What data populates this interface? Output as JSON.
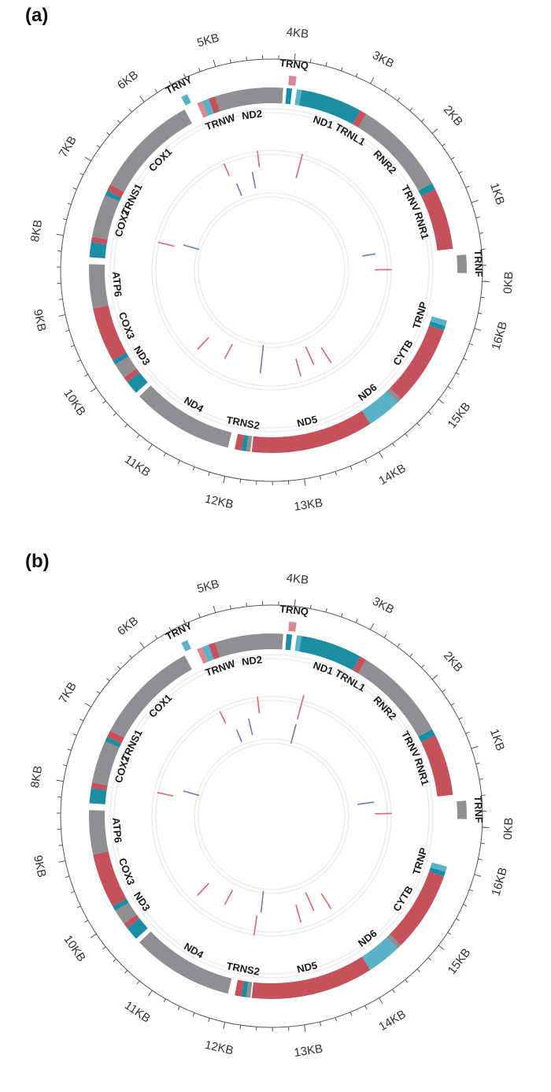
{
  "genome_length_kb": 16.6,
  "colors": {
    "gray": "#8d8f92",
    "red": "#c5515d",
    "teal": "#1b8ea3",
    "lightteal": "#5bb2c6",
    "pink": "#d88a92",
    "link_red": "#d46a72",
    "link_blue": "#6a7fae",
    "ring": "#ebebeb",
    "axis": "#555555"
  },
  "kb_labels": [
    "0KB",
    "1KB",
    "2KB",
    "3KB",
    "4KB",
    "5KB",
    "6KB",
    "7KB",
    "8KB",
    "9KB",
    "10KB",
    "11KB",
    "12KB",
    "13KB",
    "14KB",
    "15KB",
    "16KB"
  ],
  "panels": [
    {
      "label": "(a)",
      "genes": [
        {
          "name": "TRNF",
          "start": 0.1,
          "end": 0.35,
          "color": "gray",
          "outside": true
        },
        {
          "name": "RNR1",
          "start": 0.45,
          "end": 1.35,
          "color": "red"
        },
        {
          "name": "TRNV",
          "start": 1.35,
          "end": 1.45,
          "color": "teal"
        },
        {
          "name": "RNR2",
          "start": 1.45,
          "end": 2.85,
          "color": "gray"
        },
        {
          "name": "TRNL1",
          "start": 2.85,
          "end": 2.95,
          "color": "red"
        },
        {
          "name": "ND1",
          "start": 2.95,
          "end": 3.85,
          "color": "teal"
        },
        {
          "name": "TRNQ",
          "start": 3.95,
          "end": 4.05,
          "color": "pink",
          "outside": true
        },
        {
          "name": "",
          "start": 3.85,
          "end": 3.92,
          "color": "lightteal"
        },
        {
          "name": "",
          "start": 3.99,
          "end": 4.07,
          "color": "teal"
        },
        {
          "name": "ND2",
          "start": 4.12,
          "end": 5.12,
          "color": "gray"
        },
        {
          "name": "TRNW",
          "start": 5.12,
          "end": 5.22,
          "color": "red"
        },
        {
          "name": "",
          "start": 5.22,
          "end": 5.32,
          "color": "lightteal"
        },
        {
          "name": "",
          "start": 5.32,
          "end": 5.4,
          "color": "pink"
        },
        {
          "name": "TRNY",
          "start": 5.47,
          "end": 5.56,
          "color": "lightteal",
          "outside": true
        },
        {
          "name": "COX1",
          "start": 5.6,
          "end": 7.15,
          "color": "gray"
        },
        {
          "name": "TRNS1",
          "start": 7.15,
          "end": 7.25,
          "color": "red"
        },
        {
          "name": "",
          "start": 7.25,
          "end": 7.32,
          "color": "teal"
        },
        {
          "name": "COX2",
          "start": 7.32,
          "end": 7.95,
          "color": "gray"
        },
        {
          "name": "",
          "start": 7.95,
          "end": 8.03,
          "color": "red"
        },
        {
          "name": "",
          "start": 8.03,
          "end": 8.25,
          "color": "teal"
        },
        {
          "name": "ATP6",
          "start": 8.35,
          "end": 9.0,
          "color": "gray"
        },
        {
          "name": "COX3",
          "start": 9.0,
          "end": 9.8,
          "color": "red"
        },
        {
          "name": "ND3",
          "start": 9.85,
          "end": 10.1,
          "color": "gray"
        },
        {
          "name": "",
          "start": 10.1,
          "end": 10.18,
          "color": "red"
        },
        {
          "name": "",
          "start": 10.18,
          "end": 10.38,
          "color": "teal"
        },
        {
          "name": "",
          "start": 9.8,
          "end": 9.87,
          "color": "teal"
        },
        {
          "name": "ND4",
          "start": 10.45,
          "end": 11.95,
          "color": "gray"
        },
        {
          "name": "TRNS2",
          "start": 12.05,
          "end": 12.15,
          "color": "red"
        },
        {
          "name": "",
          "start": 12.15,
          "end": 12.22,
          "color": "teal"
        },
        {
          "name": "",
          "start": 12.22,
          "end": 12.28,
          "color": "gray"
        },
        {
          "name": "ND5",
          "start": 12.3,
          "end": 14.1,
          "color": "red"
        },
        {
          "name": "ND6",
          "start": 14.1,
          "end": 14.6,
          "color": "lightteal"
        },
        {
          "name": "",
          "start": 14.6,
          "end": 14.67,
          "color": "gray"
        },
        {
          "name": "CYTB",
          "start": 14.67,
          "end": 15.85,
          "color": "red"
        },
        {
          "name": "",
          "start": 15.85,
          "end": 15.92,
          "color": "teal"
        },
        {
          "name": "TRNP",
          "start": 15.92,
          "end": 16.0,
          "color": "lightteal"
        }
      ],
      "links": [
        {
          "pos": 0.15,
          "r1": 0.62,
          "r2": 0.72,
          "color": "link_red"
        },
        {
          "pos": 0.55,
          "r1": 0.55,
          "r2": 0.63,
          "color": "link_blue"
        },
        {
          "pos": 3.6,
          "r1": 0.57,
          "r2": 0.72,
          "color": "link_red"
        },
        {
          "pos": 4.6,
          "r1": 0.62,
          "r2": 0.72,
          "color": "link_red"
        },
        {
          "pos": 4.8,
          "r1": 0.5,
          "r2": 0.6,
          "color": "link_blue"
        },
        {
          "pos": 5.4,
          "r1": 0.62,
          "r2": 0.7,
          "color": "link_red"
        },
        {
          "pos": 5.3,
          "r1": 0.48,
          "r2": 0.56,
          "color": "link_blue"
        },
        {
          "pos": 7.8,
          "r1": 0.6,
          "r2": 0.7,
          "color": "link_red"
        },
        {
          "pos": 7.7,
          "r1": 0.45,
          "r2": 0.55,
          "color": "link_blue"
        },
        {
          "pos": 10.6,
          "r1": 0.55,
          "r2": 0.65,
          "color": "link_red"
        },
        {
          "pos": 11.3,
          "r1": 0.5,
          "r2": 0.6,
          "color": "link_red"
        },
        {
          "pos": 12.3,
          "r1": 0.45,
          "r2": 0.62,
          "color": "link_blue"
        },
        {
          "pos": 13.7,
          "r1": 0.5,
          "r2": 0.62,
          "color": "link_red"
        },
        {
          "pos": 14.1,
          "r1": 0.55,
          "r2": 0.66,
          "color": "link_red"
        },
        {
          "pos": 13.3,
          "r1": 0.55,
          "r2": 0.66,
          "color": "link_red"
        }
      ]
    },
    {
      "label": "(b)",
      "genes": [
        {
          "name": "TRNF",
          "start": 0.1,
          "end": 0.35,
          "color": "gray",
          "outside": true
        },
        {
          "name": "RNR1",
          "start": 0.45,
          "end": 1.35,
          "color": "red"
        },
        {
          "name": "TRNV",
          "start": 1.35,
          "end": 1.45,
          "color": "teal"
        },
        {
          "name": "RNR2",
          "start": 1.45,
          "end": 2.85,
          "color": "gray"
        },
        {
          "name": "TRNL1",
          "start": 2.85,
          "end": 2.95,
          "color": "red"
        },
        {
          "name": "ND1",
          "start": 2.95,
          "end": 3.85,
          "color": "teal"
        },
        {
          "name": "TRNQ",
          "start": 3.95,
          "end": 4.05,
          "color": "pink",
          "outside": true
        },
        {
          "name": "",
          "start": 3.85,
          "end": 3.92,
          "color": "lightteal"
        },
        {
          "name": "",
          "start": 3.99,
          "end": 4.07,
          "color": "teal"
        },
        {
          "name": "ND2",
          "start": 4.12,
          "end": 5.12,
          "color": "gray"
        },
        {
          "name": "TRNW",
          "start": 5.12,
          "end": 5.22,
          "color": "red"
        },
        {
          "name": "",
          "start": 5.22,
          "end": 5.32,
          "color": "lightteal"
        },
        {
          "name": "",
          "start": 5.32,
          "end": 5.4,
          "color": "pink"
        },
        {
          "name": "TRNY",
          "start": 5.47,
          "end": 5.56,
          "color": "lightteal",
          "outside": true
        },
        {
          "name": "COX1",
          "start": 5.6,
          "end": 7.15,
          "color": "gray"
        },
        {
          "name": "TRNS1",
          "start": 7.15,
          "end": 7.25,
          "color": "red"
        },
        {
          "name": "",
          "start": 7.25,
          "end": 7.32,
          "color": "teal"
        },
        {
          "name": "COX2",
          "start": 7.32,
          "end": 7.95,
          "color": "gray"
        },
        {
          "name": "",
          "start": 7.95,
          "end": 8.03,
          "color": "red"
        },
        {
          "name": "",
          "start": 8.03,
          "end": 8.25,
          "color": "teal"
        },
        {
          "name": "ATP6",
          "start": 8.35,
          "end": 9.0,
          "color": "gray"
        },
        {
          "name": "COX3",
          "start": 9.0,
          "end": 9.8,
          "color": "red"
        },
        {
          "name": "ND3",
          "start": 9.85,
          "end": 10.1,
          "color": "gray"
        },
        {
          "name": "",
          "start": 10.1,
          "end": 10.18,
          "color": "red"
        },
        {
          "name": "",
          "start": 10.18,
          "end": 10.38,
          "color": "teal"
        },
        {
          "name": "",
          "start": 9.8,
          "end": 9.87,
          "color": "teal"
        },
        {
          "name": "ND4",
          "start": 10.45,
          "end": 11.95,
          "color": "gray"
        },
        {
          "name": "TRNS2",
          "start": 12.05,
          "end": 12.15,
          "color": "red"
        },
        {
          "name": "",
          "start": 12.15,
          "end": 12.22,
          "color": "teal"
        },
        {
          "name": "",
          "start": 12.22,
          "end": 12.28,
          "color": "gray"
        },
        {
          "name": "ND5",
          "start": 12.3,
          "end": 14.1,
          "color": "red"
        },
        {
          "name": "ND6",
          "start": 14.1,
          "end": 14.6,
          "color": "lightteal"
        },
        {
          "name": "",
          "start": 14.6,
          "end": 14.67,
          "color": "gray"
        },
        {
          "name": "CYTB",
          "start": 14.67,
          "end": 15.85,
          "color": "red"
        },
        {
          "name": "",
          "start": 15.85,
          "end": 15.92,
          "color": "teal"
        },
        {
          "name": "TRNP",
          "start": 15.92,
          "end": 16.0,
          "color": "lightteal"
        }
      ],
      "links": [
        {
          "pos": 0.2,
          "r1": 0.62,
          "r2": 0.72,
          "color": "link_red"
        },
        {
          "pos": 0.5,
          "r1": 0.52,
          "r2": 0.62,
          "color": "link_blue"
        },
        {
          "pos": 3.6,
          "r1": 0.6,
          "r2": 0.75,
          "color": "link_red"
        },
        {
          "pos": 3.6,
          "r1": 0.45,
          "r2": 0.57,
          "color": "link_blue"
        },
        {
          "pos": 4.6,
          "r1": 0.62,
          "r2": 0.72,
          "color": "link_red"
        },
        {
          "pos": 4.9,
          "r1": 0.5,
          "r2": 0.6,
          "color": "link_blue"
        },
        {
          "pos": 5.5,
          "r1": 0.62,
          "r2": 0.7,
          "color": "link_red"
        },
        {
          "pos": 5.3,
          "r1": 0.48,
          "r2": 0.56,
          "color": "link_blue"
        },
        {
          "pos": 7.9,
          "r1": 0.6,
          "r2": 0.7,
          "color": "link_red"
        },
        {
          "pos": 7.7,
          "r1": 0.45,
          "r2": 0.55,
          "color": "link_blue"
        },
        {
          "pos": 10.6,
          "r1": 0.55,
          "r2": 0.65,
          "color": "link_red"
        },
        {
          "pos": 11.3,
          "r1": 0.5,
          "r2": 0.6,
          "color": "link_red"
        },
        {
          "pos": 12.3,
          "r1": 0.45,
          "r2": 0.58,
          "color": "link_blue"
        },
        {
          "pos": 12.2,
          "r1": 0.6,
          "r2": 0.72,
          "color": "link_red"
        },
        {
          "pos": 13.7,
          "r1": 0.5,
          "r2": 0.62,
          "color": "link_red"
        },
        {
          "pos": 14.1,
          "r1": 0.55,
          "r2": 0.66,
          "color": "link_red"
        },
        {
          "pos": 13.3,
          "r1": 0.55,
          "r2": 0.66,
          "color": "link_red"
        }
      ]
    }
  ]
}
